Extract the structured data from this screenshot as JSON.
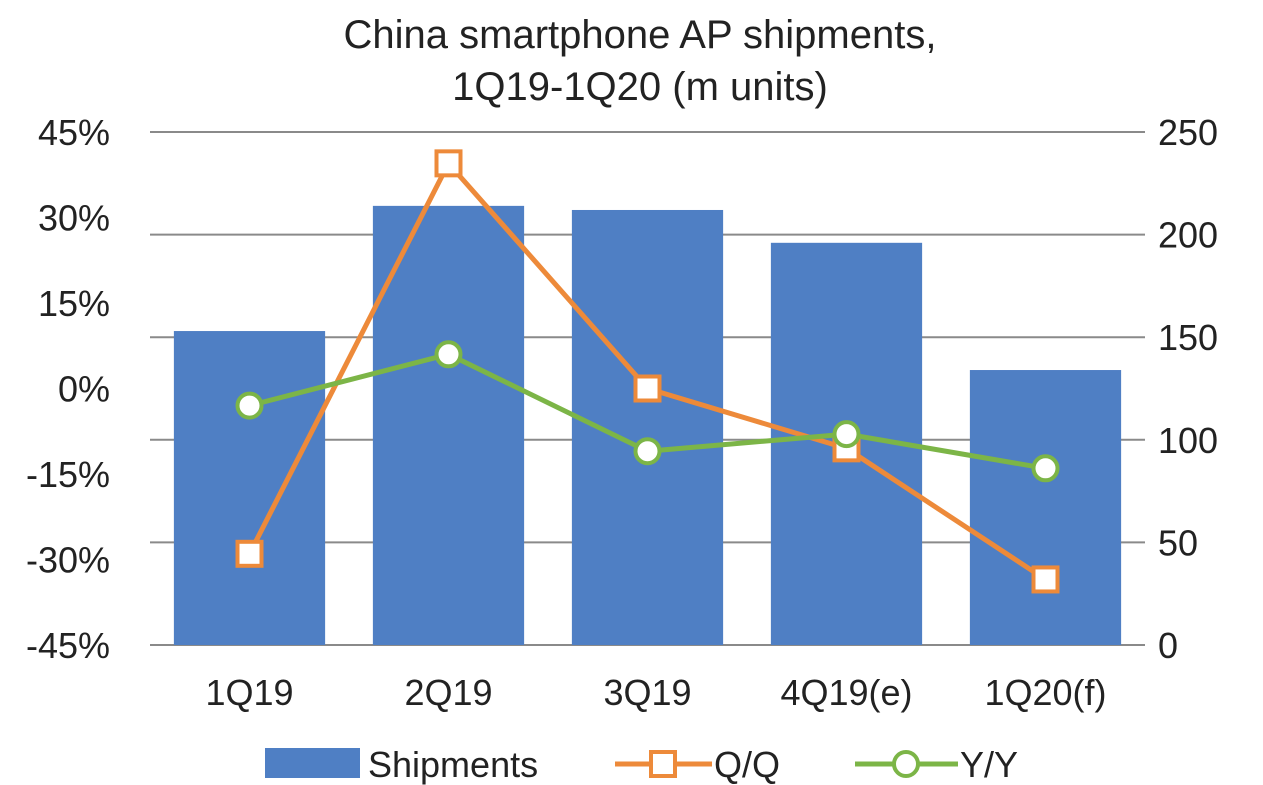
{
  "chart_data": {
    "type": "bar",
    "title": [
      "China smartphone AP shipments,",
      "1Q19-1Q20 (m units)"
    ],
    "categories": [
      "1Q19",
      "2Q19",
      "3Q19",
      "4Q19(e)",
      "1Q20(f)"
    ],
    "series": [
      {
        "name": "Shipments",
        "type": "bar",
        "axis": "right",
        "values": [
          153,
          214,
          212,
          196,
          134
        ],
        "color": "#4F7FC4"
      },
      {
        "name": "Q/Q",
        "type": "line",
        "axis": "left",
        "values": [
          -29,
          39.5,
          0,
          -10.5,
          -33.5
        ],
        "color": "#ED8A3A",
        "marker": "square"
      },
      {
        "name": "Y/Y",
        "type": "line",
        "axis": "left",
        "values": [
          -3,
          6,
          -11,
          -8,
          -14
        ],
        "color": "#7CB547",
        "marker": "circle"
      }
    ],
    "left_axis": {
      "ticks": [
        "45%",
        "30%",
        "15%",
        "0%",
        "-15%",
        "-30%",
        "-45%"
      ],
      "tick_values": [
        45,
        30,
        15,
        0,
        -15,
        -30,
        -45
      ],
      "range": [
        -45,
        45
      ]
    },
    "right_axis": {
      "ticks": [
        "250",
        "200",
        "150",
        "100",
        "50",
        "0"
      ],
      "tick_values": [
        250,
        200,
        150,
        100,
        50,
        0
      ],
      "range": [
        0,
        250
      ]
    },
    "grid": true,
    "legend_position": "bottom",
    "gridline_color": "#8A8A8A"
  }
}
